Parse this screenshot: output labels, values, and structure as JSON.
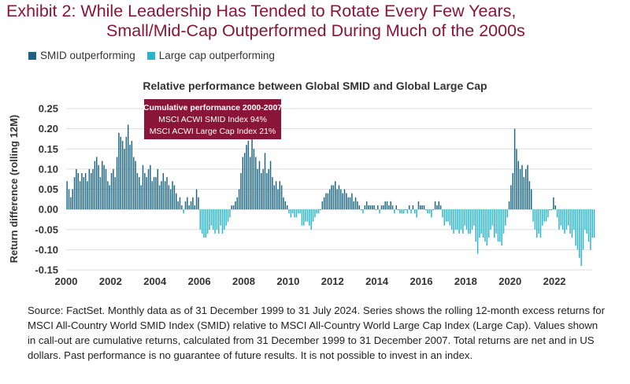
{
  "exhibit": {
    "title_line1": "Exhibit 2: While Leadership Has Tended to Rotate Every Few Years,",
    "title_line2": "Small/Mid-Cap Outperformed During Much of the 2000s"
  },
  "legend": [
    {
      "label": "SMID outperforming",
      "color": "#1a6480"
    },
    {
      "label": "Large cap outperforming",
      "color": "#25b5cf"
    }
  ],
  "colors": {
    "positive": "#1a6480",
    "negative": "#25b5cf",
    "callout": "#8a1538",
    "title": "#8a1538"
  },
  "callout": {
    "title": "Cumulative performance 2000-2007",
    "line1": "MSCI ACWI SMID Index 94%",
    "line2": "MSCI ACWI Large Cap Index 21%"
  },
  "source_text": "Source: FactSet. Monthly data as of 31 December 1999 to 31 July 2024. Series shows the rolling 12-month excess returns for MSCI All-Country World SMID Index (SMID) relative to MSCI All-Country World Large Cap Index (Large Cap). Values shown in call-out are cumulative returns, calculated from 31 December 1999 to 31 December 2007. Total returns are net and in US dollars. Past performance is no guarantee of future results. It is not possible to invest in an index.",
  "chart_data": {
    "type": "bar",
    "title": "Relative performance between Global SMID and Global Large Cap",
    "ylabel": "Return difference (rolling 12M)",
    "xlabel": "",
    "ylim": [
      -0.15,
      0.25
    ],
    "yticks": [
      "0.25",
      "0.20",
      "0.15",
      "0.10",
      "0.05",
      "0.00",
      "-0.05",
      "-0.10",
      "-0.15"
    ],
    "ytick_values": [
      0.25,
      0.2,
      0.15,
      0.1,
      0.05,
      0.0,
      -0.05,
      -0.1,
      -0.15
    ],
    "xticks": [
      "2000",
      "2002",
      "2004",
      "2006",
      "2008",
      "2010",
      "2012",
      "2014",
      "2016",
      "2018",
      "2020",
      "2022"
    ],
    "xtick_values": [
      2000,
      2002,
      2004,
      2006,
      2008,
      2010,
      2012,
      2014,
      2016,
      2018,
      2020,
      2022
    ],
    "xlim": [
      2000,
      2023.7
    ],
    "grid": true,
    "start_year": 2000,
    "values": [
      0.07,
      0.05,
      0.03,
      0.05,
      0.08,
      0.1,
      0.09,
      0.07,
      0.09,
      0.08,
      0.09,
      0.07,
      0.1,
      0.09,
      0.1,
      0.12,
      0.13,
      0.11,
      0.08,
      0.12,
      0.11,
      0.1,
      0.07,
      0.06,
      0.09,
      0.1,
      0.08,
      0.13,
      0.19,
      0.18,
      0.17,
      0.15,
      0.18,
      0.21,
      0.16,
      0.17,
      0.13,
      0.12,
      0.09,
      0.08,
      0.06,
      0.11,
      0.09,
      0.08,
      0.1,
      0.11,
      0.07,
      0.08,
      0.08,
      0.1,
      0.06,
      0.07,
      0.09,
      0.07,
      0.08,
      0.06,
      0.05,
      0.07,
      0.06,
      0.04,
      0.02,
      0.03,
      0.01,
      -0.01,
      0.02,
      0.03,
      0.01,
      0.02,
      0.03,
      0.01,
      0.05,
      0.03,
      -0.05,
      -0.06,
      -0.07,
      -0.07,
      -0.06,
      -0.05,
      -0.04,
      -0.05,
      -0.06,
      -0.05,
      -0.06,
      -0.04,
      -0.06,
      -0.05,
      -0.04,
      -0.03,
      -0.02,
      0.01,
      0.01,
      0.02,
      0.03,
      0.05,
      0.09,
      0.13,
      0.14,
      0.16,
      0.17,
      0.13,
      0.18,
      0.15,
      0.13,
      0.1,
      0.12,
      0.09,
      0.1,
      0.14,
      0.09,
      0.1,
      0.12,
      0.08,
      0.06,
      0.07,
      0.05,
      0.07,
      0.06,
      0.03,
      0.02,
      0.01,
      -0.01,
      -0.02,
      -0.01,
      -0.02,
      -0.02,
      -0.01,
      -0.01,
      -0.04,
      -0.04,
      -0.03,
      -0.03,
      -0.04,
      -0.05,
      -0.03,
      -0.02,
      -0.01,
      -0.01,
      0.0,
      0.02,
      0.03,
      0.04,
      0.04,
      0.05,
      0.06,
      0.06,
      0.07,
      0.05,
      0.06,
      0.05,
      0.04,
      0.05,
      0.04,
      0.03,
      0.03,
      0.04,
      0.02,
      0.03,
      0.02,
      0.01,
      0.0,
      -0.01,
      0.01,
      0.02,
      0.01,
      0.01,
      0.01,
      0.01,
      0.0,
      0.01,
      -0.01,
      0.01,
      0.01,
      0.02,
      0.02,
      0.01,
      0.02,
      0.01,
      -0.01,
      0.01,
      0.0,
      -0.01,
      -0.01,
      -0.01,
      0.0,
      -0.01,
      0.01,
      -0.01,
      0.01,
      -0.01,
      -0.02,
      0.02,
      0.01,
      0.01,
      0.01,
      0.0,
      -0.01,
      -0.01,
      -0.02,
      0.0,
      0.02,
      0.01,
      0.02,
      0.01,
      -0.02,
      -0.04,
      -0.03,
      -0.03,
      -0.04,
      -0.05,
      -0.06,
      -0.05,
      -0.05,
      -0.06,
      -0.05,
      -0.06,
      -0.04,
      -0.05,
      -0.06,
      -0.06,
      -0.05,
      -0.04,
      -0.08,
      -0.11,
      -0.07,
      -0.06,
      -0.07,
      -0.08,
      -0.09,
      -0.07,
      -0.05,
      -0.04,
      -0.07,
      -0.06,
      -0.08,
      -0.08,
      -0.09,
      -0.06,
      -0.04,
      -0.02,
      0.02,
      0.06,
      0.09,
      0.2,
      0.15,
      0.12,
      0.1,
      0.11,
      0.08,
      0.1,
      0.11,
      0.07,
      0.05,
      -0.03,
      -0.05,
      -0.07,
      -0.06,
      -0.07,
      -0.04,
      -0.03,
      -0.03,
      -0.02,
      0.0,
      0.0,
      0.03,
      0.01,
      -0.02,
      -0.05,
      -0.04,
      -0.05,
      -0.06,
      -0.05,
      -0.04,
      -0.06,
      -0.07,
      -0.05,
      -0.09,
      -0.1,
      -0.12,
      -0.14,
      -0.1,
      -0.05,
      -0.06,
      -0.08,
      -0.1,
      -0.07,
      -0.07
    ]
  }
}
